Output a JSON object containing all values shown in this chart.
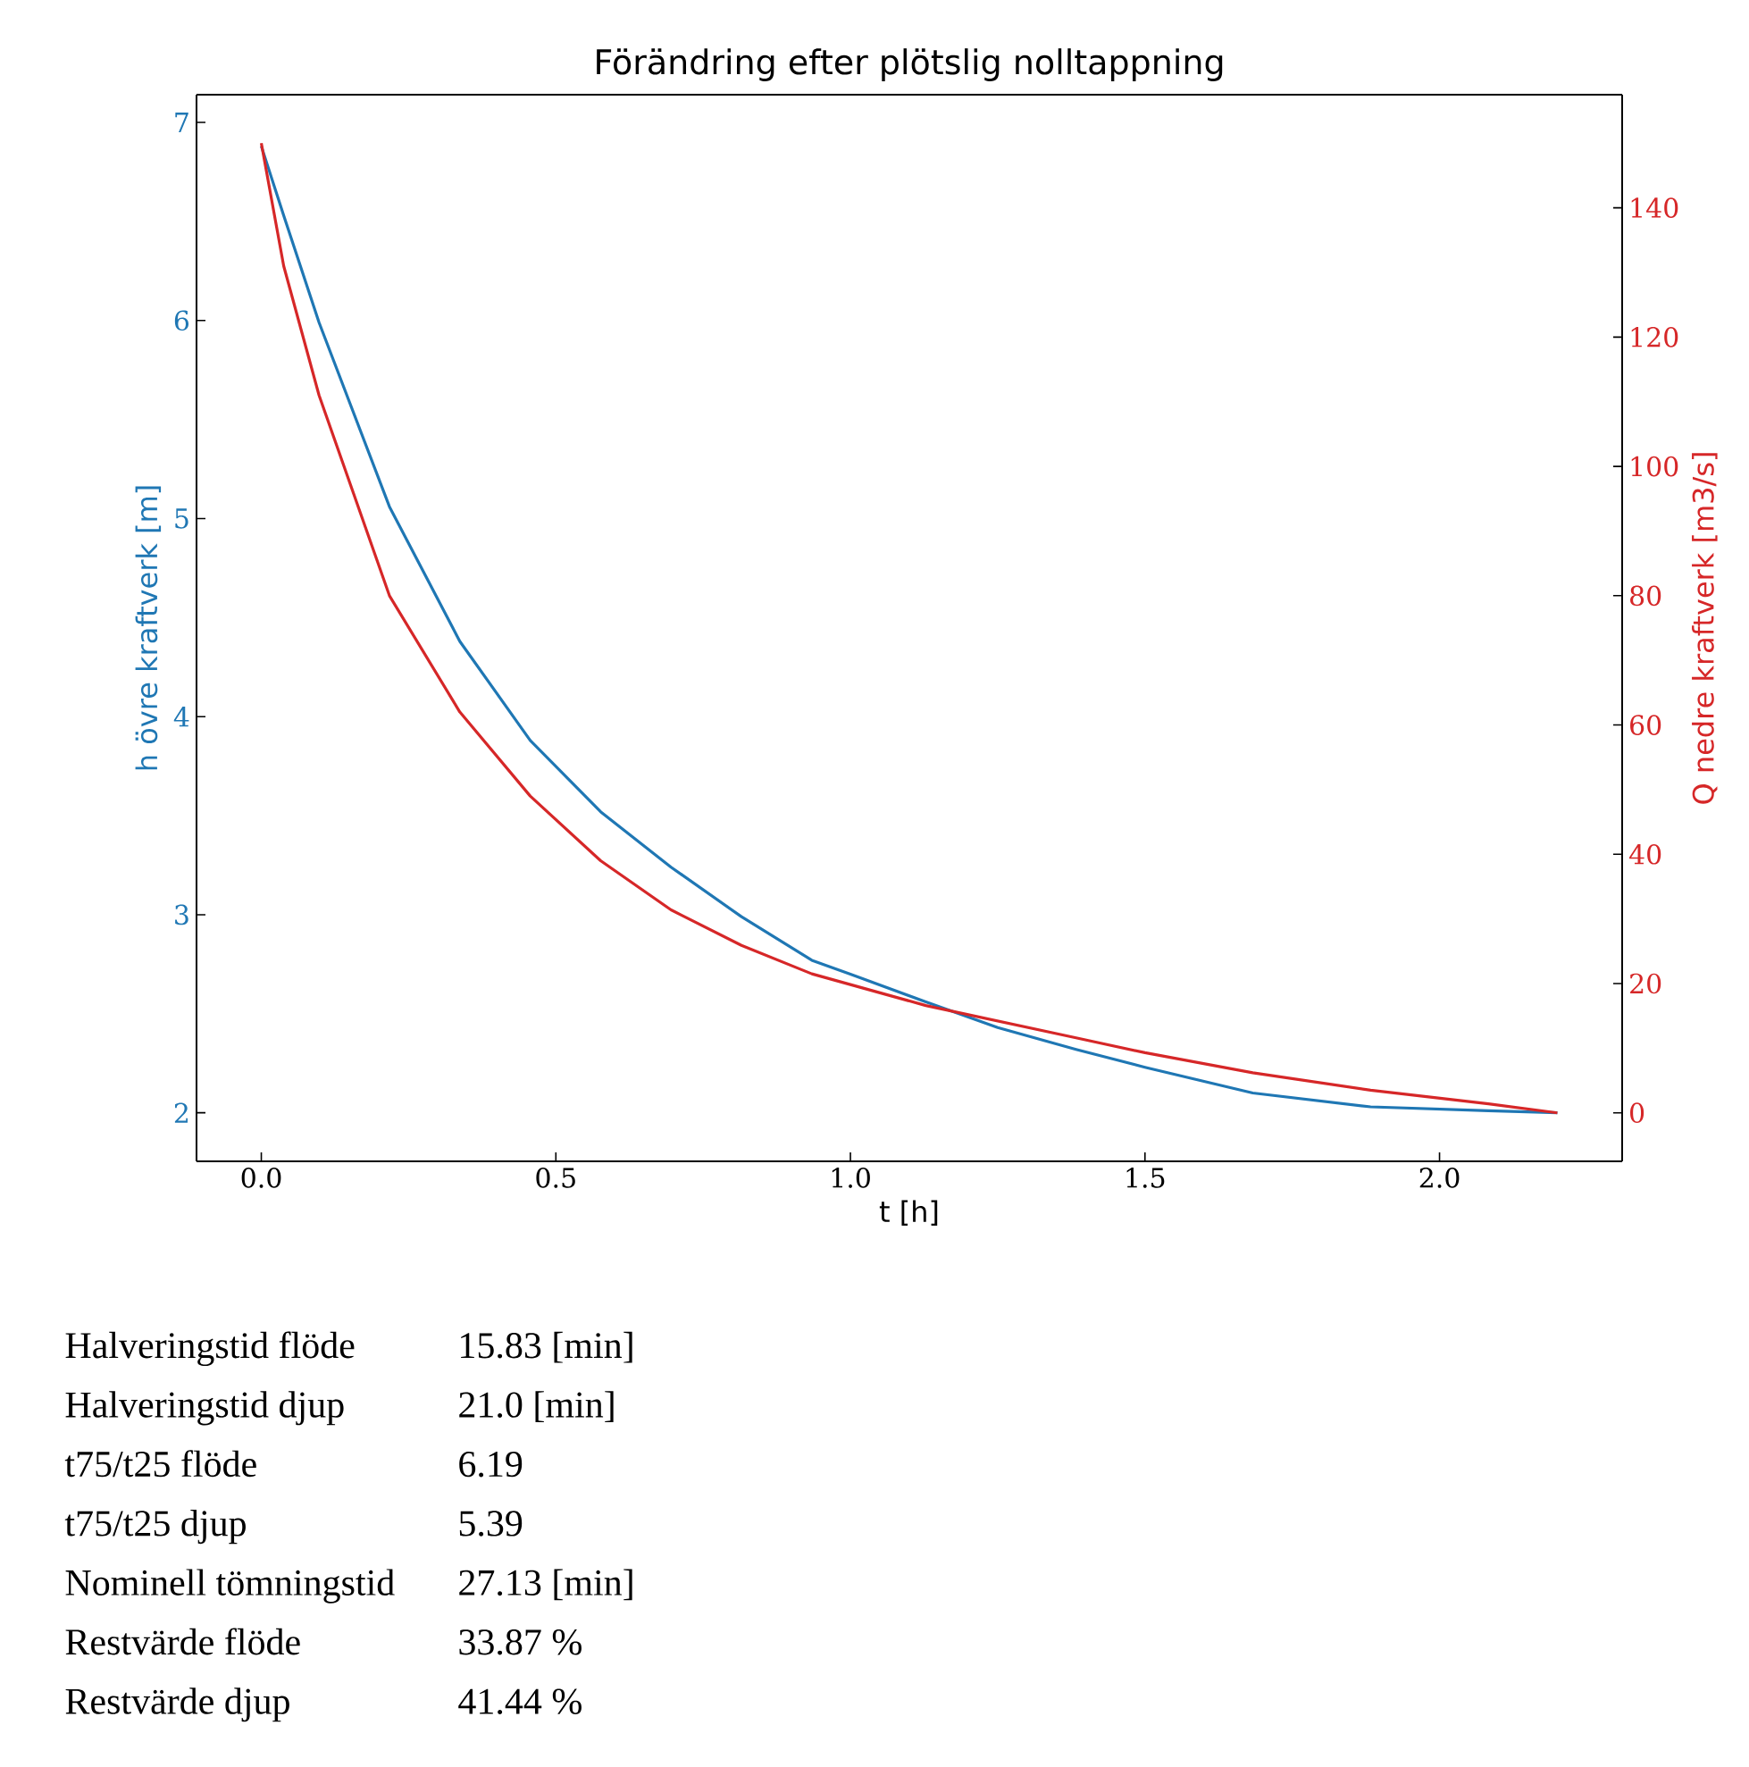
{
  "chart_data": {
    "type": "line",
    "title": "Förändring efter plötslig nolltappning",
    "xlabel": "t [h]",
    "ylabel": "h övre kraftverk [m]",
    "y2label": "Q nedre kraftverk [m3/s]",
    "xlim": [
      -0.11,
      2.31
    ],
    "xticks": [
      {
        "value": 0,
        "label": "0.0"
      },
      0.5,
      {
        "value": 1,
        "label": "1.0"
      },
      1.5,
      {
        "value": 2,
        "label": "2.0"
      }
    ],
    "ylim": [
      1.755,
      7.14
    ],
    "yticks": [
      2,
      3,
      4,
      5,
      6,
      7
    ],
    "y2lim": [
      -7.5,
      157.5
    ],
    "y2ticks": [
      0,
      20,
      40,
      60,
      80,
      100,
      120,
      140
    ],
    "series": [
      {
        "color": "#1f77b4",
        "x": [
          0,
          0.038,
          0.098,
          0.2175,
          0.337,
          0.4565,
          0.576,
          0.6955,
          0.815,
          0.9345,
          1.0,
          1.128,
          1.25,
          1.383,
          1.5,
          1.683,
          1.883,
          2.083,
          2.2
        ],
        "values": [
          6.88,
          6.53,
          5.99,
          5.06,
          4.38,
          3.88,
          3.52,
          3.24,
          2.99,
          2.77,
          2.7,
          2.56,
          2.43,
          2.32,
          2.23,
          2.1,
          2.03,
          2.01,
          2.0
        ]
      },
      {
        "color": "#d62728",
        "axis": "y2",
        "x": [
          0,
          0.038,
          0.098,
          0.2175,
          0.337,
          0.4565,
          0.576,
          0.6955,
          0.815,
          0.9345,
          1.128,
          1.383,
          1.5,
          1.683,
          1.883,
          2.083,
          2.2
        ],
        "values": [
          150,
          131,
          111,
          80,
          62,
          49,
          39,
          31.4,
          25.9,
          21.5,
          16.6,
          11.6,
          9.3,
          6.2,
          3.5,
          1.4,
          0
        ]
      }
    ],
    "annotations": [
      "Halveringstid flöde",
      "15.83 [min]",
      "Halveringstid djup",
      "21.0 [min]",
      "t75/t25 flöde",
      "6.19",
      "t75/t25 djup",
      "5.39",
      "Nominell tömningstid",
      "27.13 [min]",
      "Restvärde flöde",
      "33.87 %",
      "Restvärde djup",
      "41.44 %"
    ]
  }
}
